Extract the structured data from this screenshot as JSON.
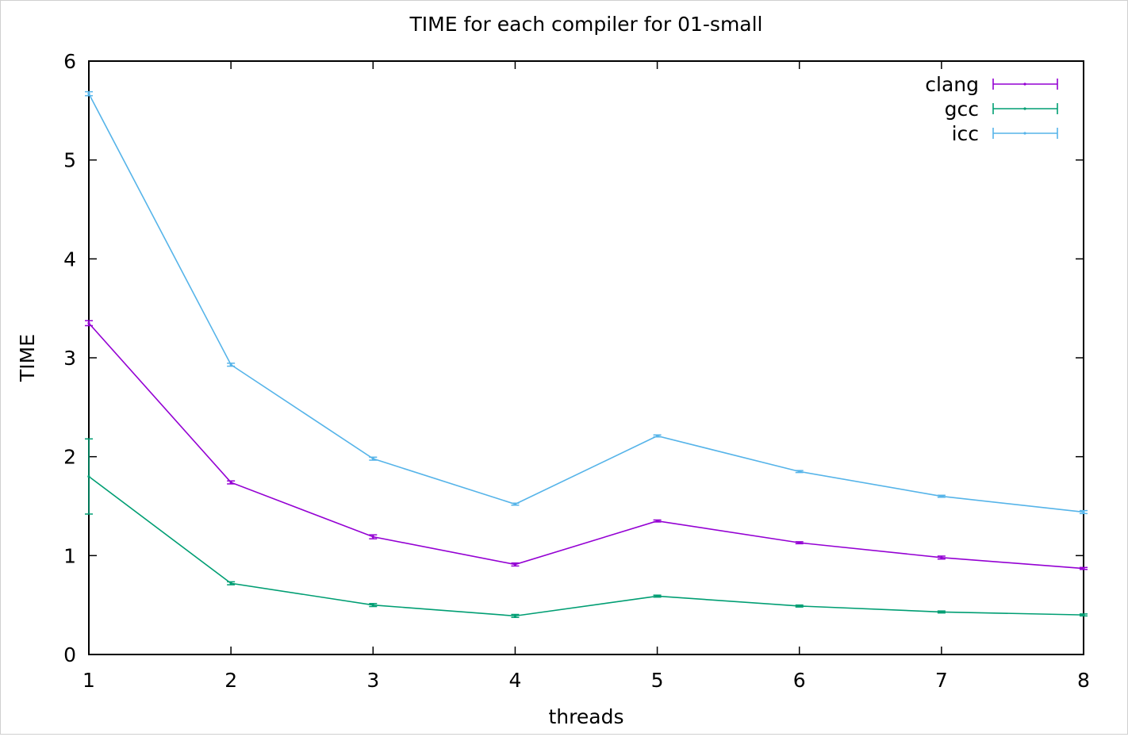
{
  "chart_data": {
    "type": "line",
    "title": "TIME for each compiler for 01-small",
    "xlabel": "threads",
    "ylabel": "TIME",
    "x": [
      1,
      2,
      3,
      4,
      5,
      6,
      7,
      8
    ],
    "xticks": [
      "1",
      "2",
      "3",
      "4",
      "5",
      "6",
      "7",
      "8"
    ],
    "yticks": [
      "0",
      "1",
      "2",
      "3",
      "4",
      "5",
      "6"
    ],
    "xlim": [
      1,
      8
    ],
    "ylim": [
      0,
      6
    ],
    "grid": false,
    "legend_position": "top-right",
    "error_bars": true,
    "series": [
      {
        "name": "clang",
        "color": "#9400d3",
        "values": [
          3.35,
          1.74,
          1.19,
          0.91,
          1.35,
          1.13,
          0.98,
          0.87
        ],
        "errors": [
          0.025,
          0.015,
          0.02,
          0.015,
          0.01,
          0.01,
          0.015,
          0.01
        ]
      },
      {
        "name": "gcc",
        "color": "#009e73",
        "values": [
          1.8,
          0.72,
          0.5,
          0.39,
          0.59,
          0.49,
          0.43,
          0.4
        ],
        "errors": [
          0.38,
          0.015,
          0.015,
          0.015,
          0.01,
          0.01,
          0.01,
          0.01
        ]
      },
      {
        "name": "icc",
        "color": "#56b4e9",
        "values": [
          5.67,
          2.93,
          1.98,
          1.52,
          2.21,
          1.85,
          1.6,
          1.44
        ],
        "errors": [
          0.02,
          0.015,
          0.015,
          0.01,
          0.01,
          0.01,
          0.01,
          0.015
        ]
      }
    ]
  }
}
